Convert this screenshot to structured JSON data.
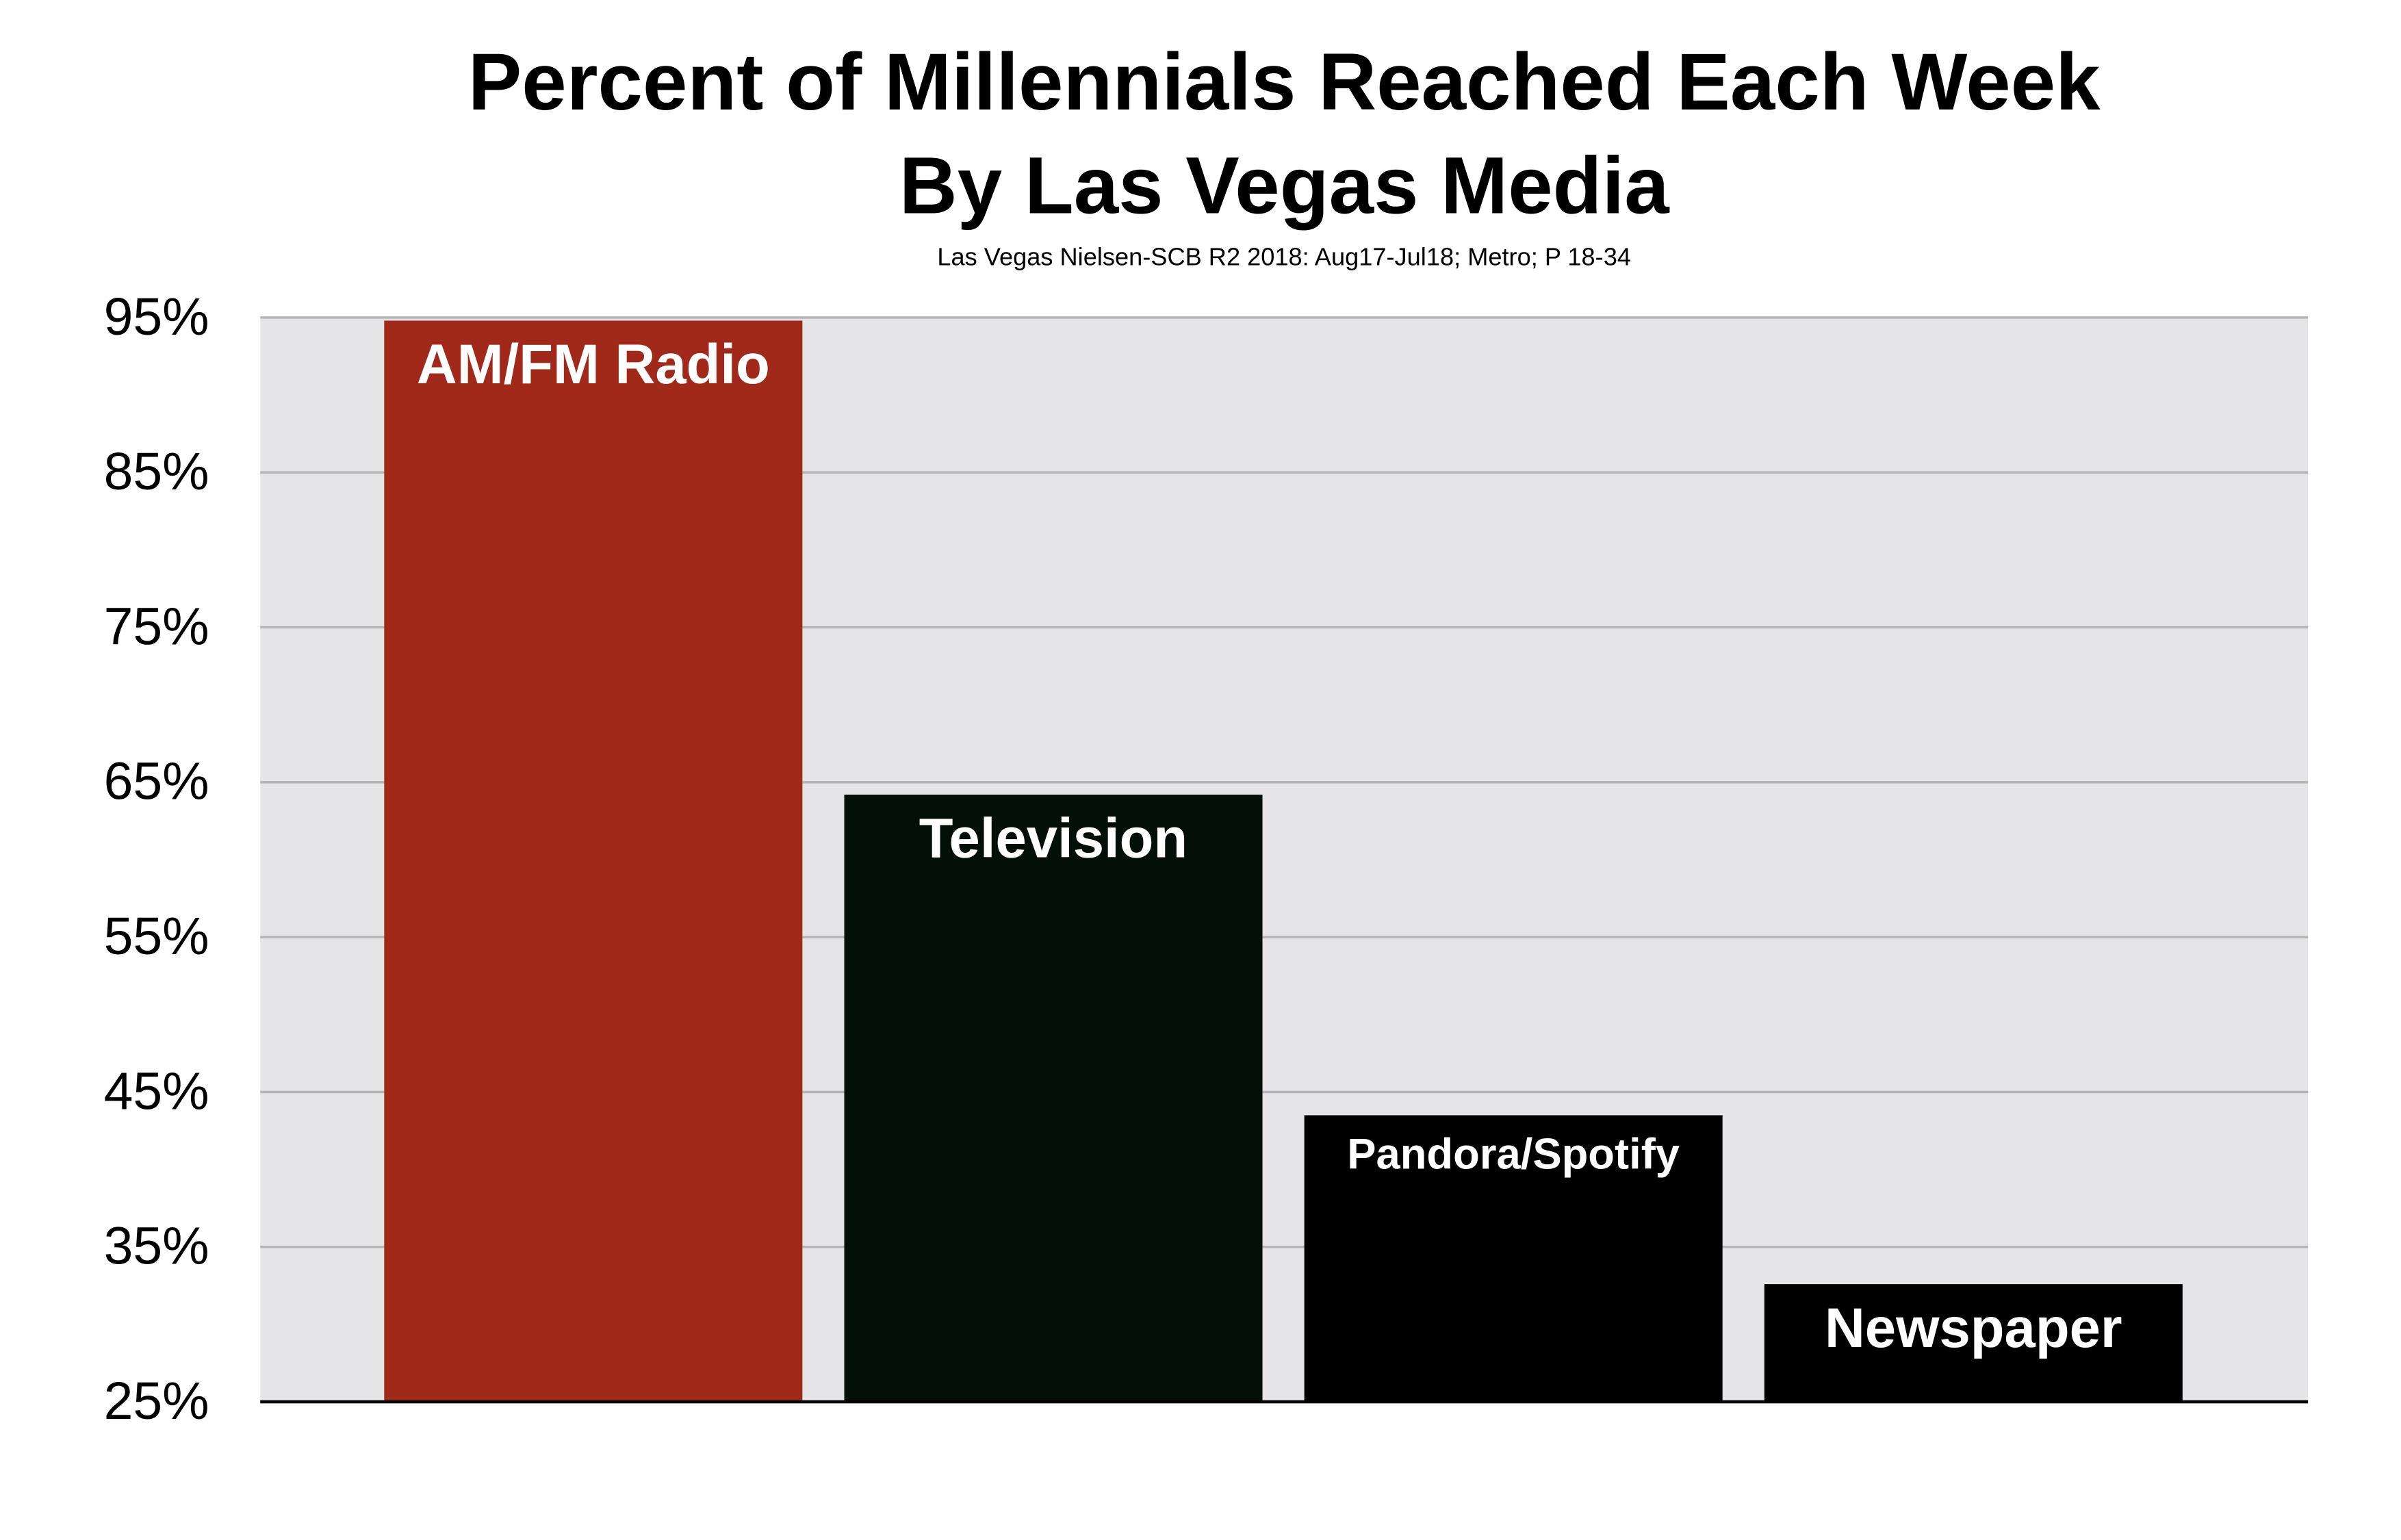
{
  "chart_data": {
    "type": "bar",
    "title": [
      "Percent of Millennials Reached Each Week",
      "By Las Vegas Media"
    ],
    "subtitle": "Las Vegas Nielsen-SCB R2 2018: Aug17-Jul18; Metro; P 18-34",
    "categories": [
      "AM/FM Radio",
      "Television",
      "Pandora/Spotify",
      "Newspaper"
    ],
    "values": [
      94.8,
      64.2,
      43.5,
      32.6
    ],
    "colors": [
      "#a1291a",
      "#050f0a",
      "#000000",
      "#000000"
    ],
    "ylim": [
      25,
      95
    ],
    "yticks": [
      {
        "value": 25,
        "label": "25%"
      },
      {
        "value": 35,
        "label": "35%"
      },
      {
        "value": 45,
        "label": "45%"
      },
      {
        "value": 55,
        "label": "55%"
      },
      {
        "value": 65,
        "label": "65%"
      },
      {
        "value": 75,
        "label": "75%"
      },
      {
        "value": 85,
        "label": "85%"
      },
      {
        "value": 95,
        "label": "95%"
      }
    ],
    "grid": true
  }
}
